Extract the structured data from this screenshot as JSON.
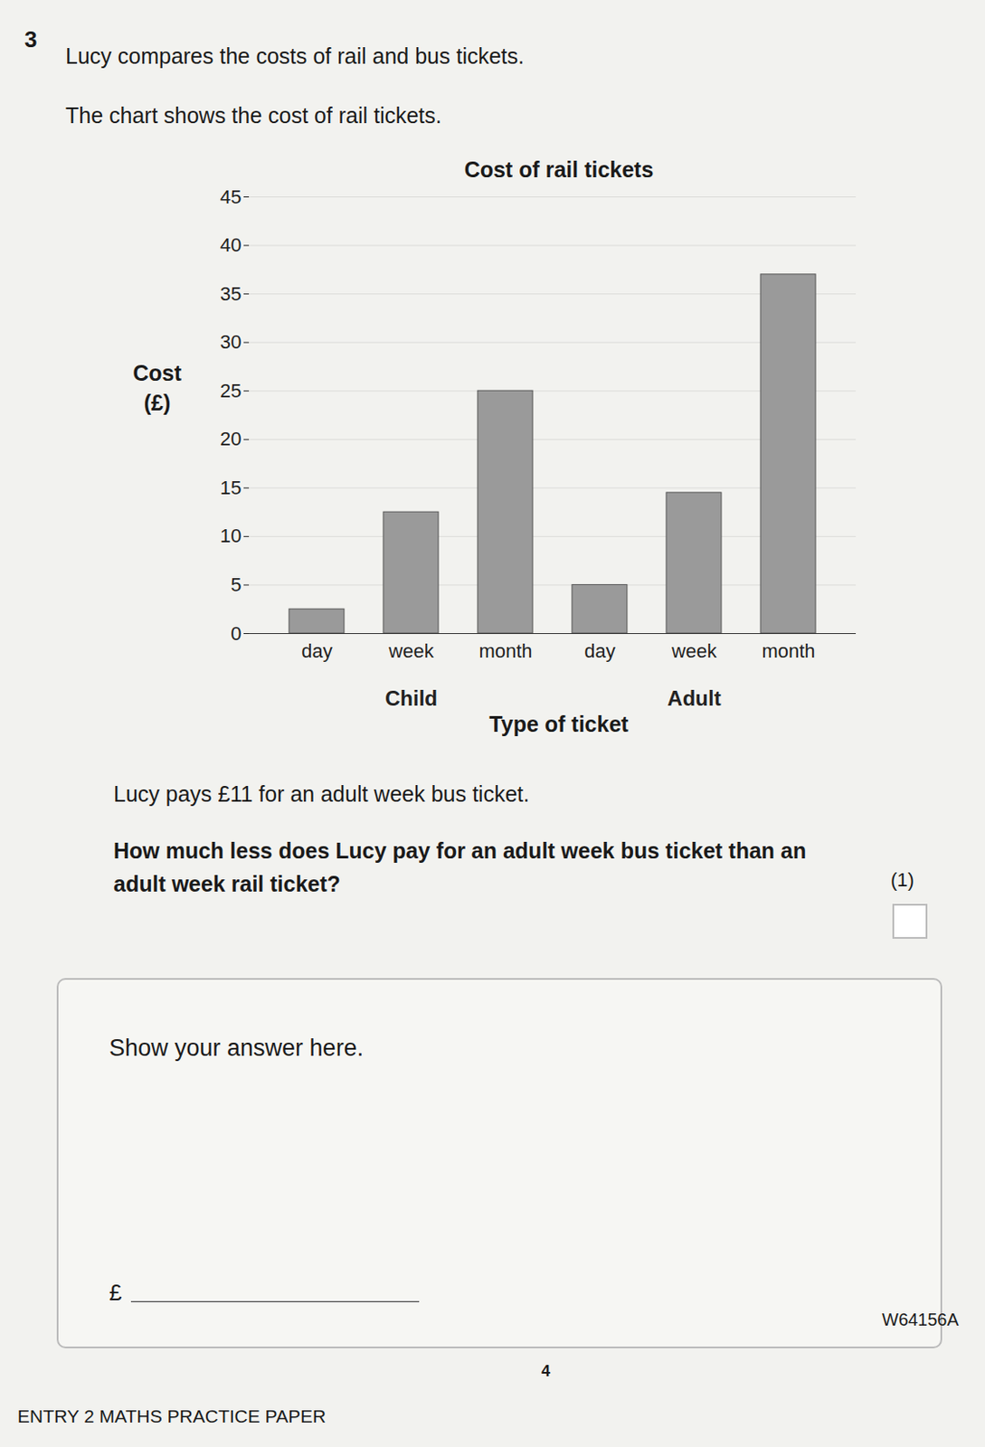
{
  "question": {
    "number": "3",
    "intro": [
      "Lucy compares the costs of rail and bus tickets.",
      "The chart shows the cost of rail tickets."
    ],
    "statement": "Lucy pays £11 for an adult week bus ticket.",
    "prompt": "How much less does Lucy pay for an adult week bus ticket than an adult week rail ticket?",
    "marks": "(1)",
    "answer_box": "Show your answer here.",
    "answer_prefix": "£"
  },
  "footer": {
    "code": "W64156A",
    "page": "4",
    "paper": "ENTRY 2 MATHS PRACTICE PAPER"
  },
  "chart_data": {
    "type": "bar",
    "title": "Cost of rail tickets",
    "x_label": "Type of ticket",
    "y_label": "Cost (£)",
    "categories": [
      "day",
      "week",
      "month",
      "day",
      "week",
      "month"
    ],
    "groups": [
      "Child",
      "Child",
      "Child",
      "Adult",
      "Adult",
      "Adult"
    ],
    "values": [
      2.5,
      12.5,
      25,
      5,
      14.5,
      37
    ],
    "color": "#9a9a9a",
    "ylim": [
      0,
      45
    ],
    "yticks": [
      0,
      5,
      10,
      15,
      20,
      25,
      30,
      35,
      40,
      45
    ],
    "grid": true
  }
}
